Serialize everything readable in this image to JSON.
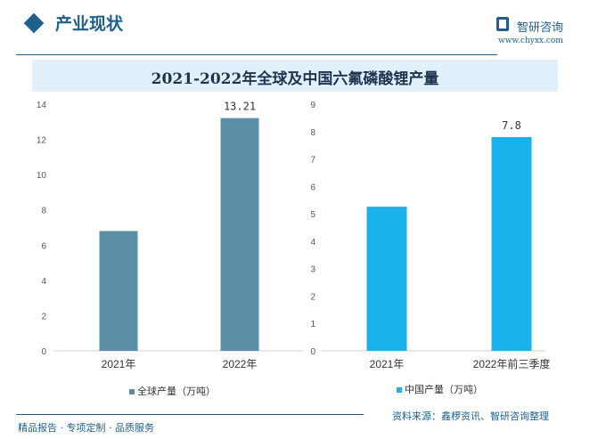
{
  "header": {
    "title": "产业现状",
    "brand": "智研咨询",
    "url": "www.chyxx.com"
  },
  "chart_title": "2021-2022年全球及中国六氟磷酸锂产量",
  "footer": {
    "tagline": "精品报告 · 专项定制 · 品质服务",
    "source": "资料来源：鑫椤资讯、智研咨询整理"
  },
  "chart_data": [
    {
      "type": "bar",
      "categories": [
        "2021年",
        "2022年"
      ],
      "series": [
        {
          "name": "全球产量（万吨）",
          "values": [
            6.8,
            13.21
          ],
          "color": "#5b8fa8"
        }
      ],
      "data_labels": [
        "",
        "13.21"
      ],
      "ylim": [
        0,
        14
      ],
      "yticks": [
        0,
        2,
        4,
        6,
        8,
        10,
        12,
        14
      ],
      "grid": false,
      "legend": "bottom"
    },
    {
      "type": "bar",
      "categories": [
        "2021年",
        "2022年前三季度"
      ],
      "series": [
        {
          "name": "中国产量（万吨）",
          "values": [
            5.26,
            7.8
          ],
          "color": "#1bb1ec"
        }
      ],
      "data_labels": [
        "",
        "7.8"
      ],
      "ylim": [
        0,
        9
      ],
      "yticks": [
        0,
        1,
        2,
        3,
        4,
        5,
        6,
        7,
        8,
        9
      ],
      "grid": false,
      "legend": "bottom"
    }
  ]
}
